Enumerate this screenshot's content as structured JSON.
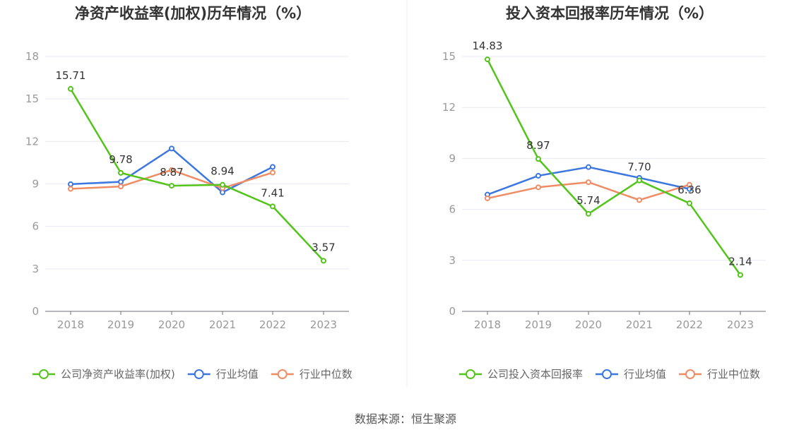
{
  "source_text": "数据来源：恒生聚源",
  "chart_data": [
    {
      "type": "line",
      "title": "净资产收益率(加权)历年情况（%）",
      "categories": [
        "2018",
        "2019",
        "2020",
        "2021",
        "2022",
        "2023"
      ],
      "ylim": [
        0,
        18
      ],
      "yticks": [
        0,
        3,
        6,
        9,
        12,
        15,
        18
      ],
      "grid": true,
      "legend_position": "bottom",
      "series": [
        {
          "name": "公司净资产收益率(加权)",
          "color": "#52c41a",
          "values": [
            15.71,
            9.78,
            8.87,
            8.94,
            7.41,
            3.57
          ],
          "labels": [
            "15.71",
            "9.78",
            "8.87",
            "8.94",
            "7.41",
            "3.57"
          ]
        },
        {
          "name": "行业均值",
          "color": "#3b76e1",
          "values": [
            8.98,
            9.15,
            11.5,
            8.4,
            10.2,
            null
          ]
        },
        {
          "name": "行业中位数",
          "color": "#f08c64",
          "values": [
            8.65,
            8.82,
            9.98,
            8.7,
            9.8,
            null
          ]
        }
      ]
    },
    {
      "type": "line",
      "title": "投入资本回报率历年情况（%）",
      "categories": [
        "2018",
        "2019",
        "2020",
        "2021",
        "2022",
        "2023"
      ],
      "ylim": [
        0,
        15
      ],
      "yticks": [
        0,
        3,
        6,
        9,
        12,
        15
      ],
      "grid": true,
      "legend_position": "bottom",
      "series": [
        {
          "name": "公司投入资本回报率",
          "color": "#52c41a",
          "values": [
            14.83,
            8.97,
            5.74,
            7.7,
            6.36,
            2.14
          ],
          "labels": [
            "14.83",
            "8.97",
            "5.74",
            "7.70",
            "6.36",
            "2.14"
          ]
        },
        {
          "name": "行业均值",
          "color": "#3b76e1",
          "values": [
            6.87,
            7.98,
            8.49,
            7.86,
            7.2,
            null
          ]
        },
        {
          "name": "行业中位数",
          "color": "#f08c64",
          "values": [
            6.65,
            7.3,
            7.6,
            6.55,
            7.45,
            null
          ]
        }
      ]
    }
  ]
}
